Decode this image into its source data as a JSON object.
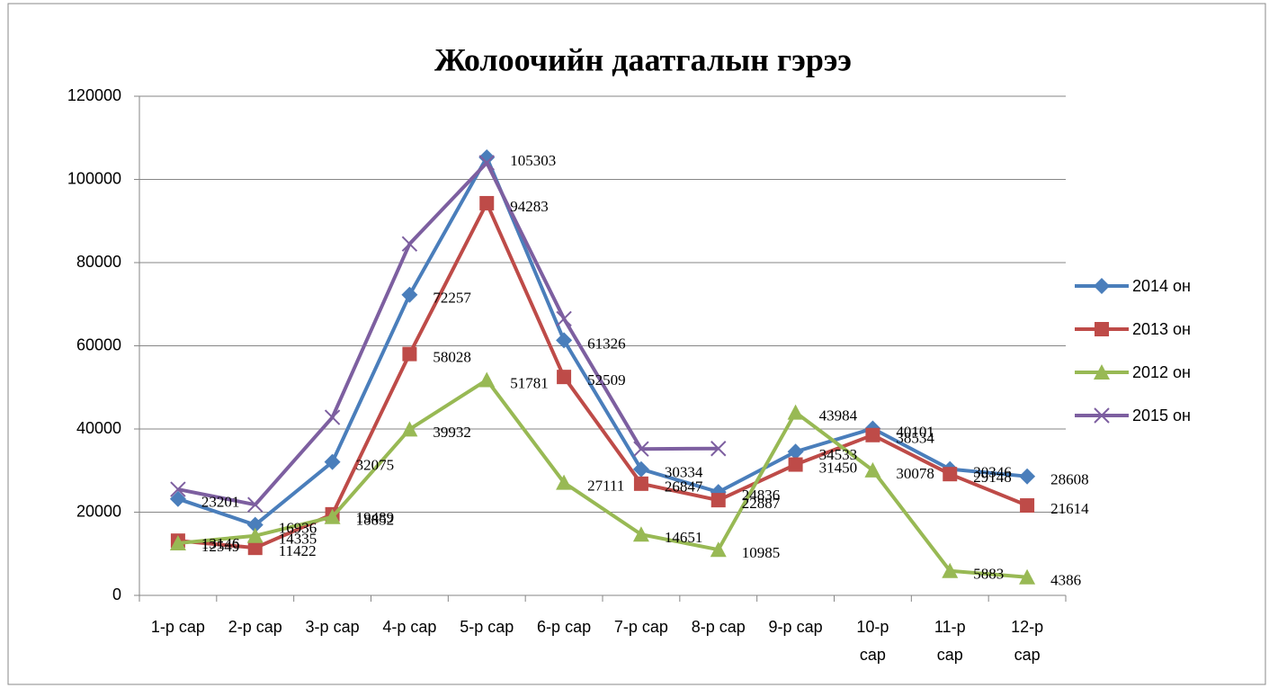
{
  "chart_data": {
    "type": "line",
    "title": "Жолоочийн даатгалын гэрээ",
    "categories": [
      "1-р сар",
      "2-р сар",
      "3-р сар",
      "4-р сар",
      "5-р сар",
      "6-р сар",
      "7-р сар",
      "8-р сар",
      "9-р сар",
      "10-р сар",
      "11-р сар",
      "12-р сар"
    ],
    "series": [
      {
        "name": "2014 он",
        "color": "#4a7ebb",
        "marker": "diamond",
        "data_labels": true,
        "values": [
          23201,
          16936,
          32075,
          72257,
          105303,
          61326,
          30334,
          24836,
          34533,
          40101,
          30346,
          28608
        ]
      },
      {
        "name": "2013 он",
        "color": "#be4b48",
        "marker": "square",
        "data_labels": true,
        "values": [
          13146,
          11422,
          19489,
          58028,
          94283,
          52509,
          26847,
          22887,
          31450,
          38534,
          29148,
          21614
        ]
      },
      {
        "name": "2012 он",
        "color": "#98b954",
        "marker": "triangle",
        "data_labels": true,
        "values": [
          12549,
          14335,
          18852,
          39932,
          51781,
          27111,
          14651,
          10985,
          43984,
          30078,
          5883,
          4386
        ]
      },
      {
        "name": "2015 он",
        "color": "#7d5fa0",
        "marker": "x",
        "data_labels": false,
        "values": [
          25500,
          21800,
          42800,
          84500,
          104000,
          66500,
          35200,
          35300,
          null,
          null,
          null,
          null
        ]
      }
    ],
    "ylim": [
      0,
      120000
    ],
    "yticks": [
      0,
      20000,
      40000,
      60000,
      80000,
      100000,
      120000
    ],
    "grid": true,
    "legend": "right"
  }
}
